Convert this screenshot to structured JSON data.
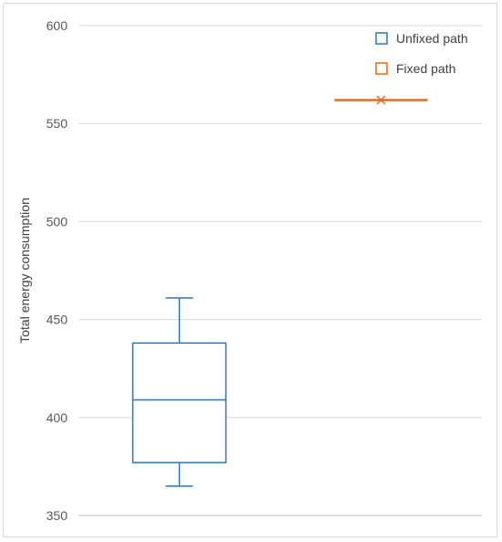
{
  "chart_data": {
    "type": "box",
    "title": "",
    "xlabel": "",
    "ylabel": "Total energy consumption",
    "ylim": [
      350,
      600
    ],
    "yticks": [
      350,
      400,
      450,
      500,
      550,
      600
    ],
    "grid": true,
    "legend_position": "top-right",
    "series": [
      {
        "name": "Unfixed path",
        "color": "#2e75b6",
        "min": 365,
        "q1": 377,
        "median": 409,
        "q3": 438,
        "max": 461
      },
      {
        "name": "Fixed path",
        "color": "#e06c1f",
        "min": 562,
        "q1": 562,
        "median": 562,
        "q3": 562,
        "max": 562,
        "mean": 562
      }
    ]
  }
}
